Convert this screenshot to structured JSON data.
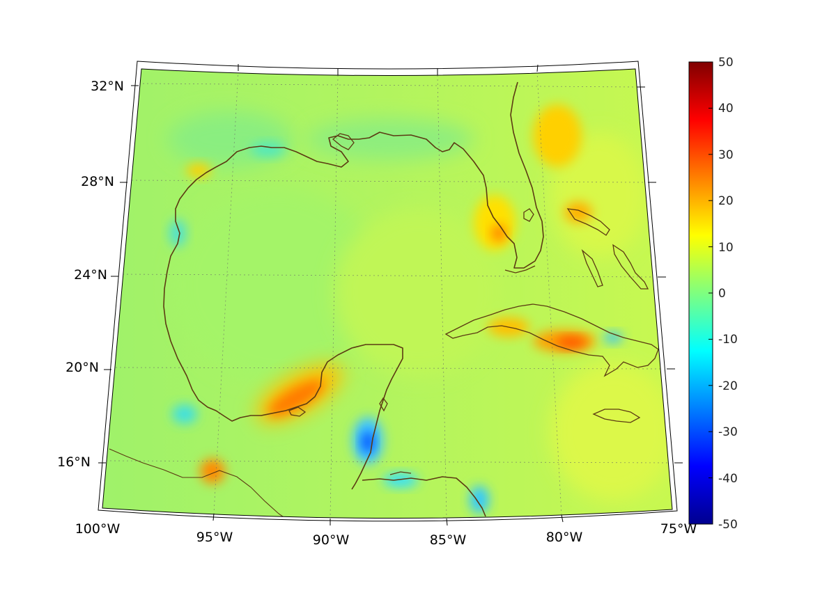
{
  "map": {
    "lon_labels": [
      "100°W",
      "95°W",
      "90°W",
      "85°W",
      "80°W",
      "75°W"
    ],
    "lat_labels": [
      "32°N",
      "28°N",
      "24°N",
      "20°N",
      "16°N"
    ],
    "extent": {
      "lon": [
        -100,
        -75
      ],
      "lat": [
        14,
        33
      ]
    },
    "gridlines": true,
    "coastline_color": "#5b3a12"
  },
  "colorbar": {
    "ticks": [
      "50",
      "40",
      "30",
      "20",
      "10",
      "0",
      "-10",
      "-20",
      "-30",
      "-40",
      "-50"
    ],
    "range": [
      -50,
      50
    ],
    "colormap": "jet",
    "position": "right"
  },
  "field_features": [
    {
      "name": "yucatan-west-coast",
      "lon": -91.5,
      "lat": 19.0,
      "value": 25
    },
    {
      "name": "yucatan-east-coast",
      "lon": -88.5,
      "lat": 17.3,
      "value": -28
    },
    {
      "name": "cuba-east",
      "lon": -79.5,
      "lat": 21.0,
      "value": 25
    },
    {
      "name": "florida-southwest",
      "lon": -82.5,
      "lat": 26.0,
      "value": 22
    },
    {
      "name": "tehuantepec",
      "lon": -95.0,
      "lat": 15.8,
      "value": 25
    },
    {
      "name": "atlantic-northeast",
      "lon": -79.5,
      "lat": 30.0,
      "value": 16
    },
    {
      "name": "bahamas-north",
      "lon": -79.0,
      "lat": 26.5,
      "value": 20
    },
    {
      "name": "honduras-coast",
      "lon": -84.0,
      "lat": 15.0,
      "value": -14
    },
    {
      "name": "veracruz-coast",
      "lon": -96.0,
      "lat": 18.0,
      "value": -12
    }
  ]
}
